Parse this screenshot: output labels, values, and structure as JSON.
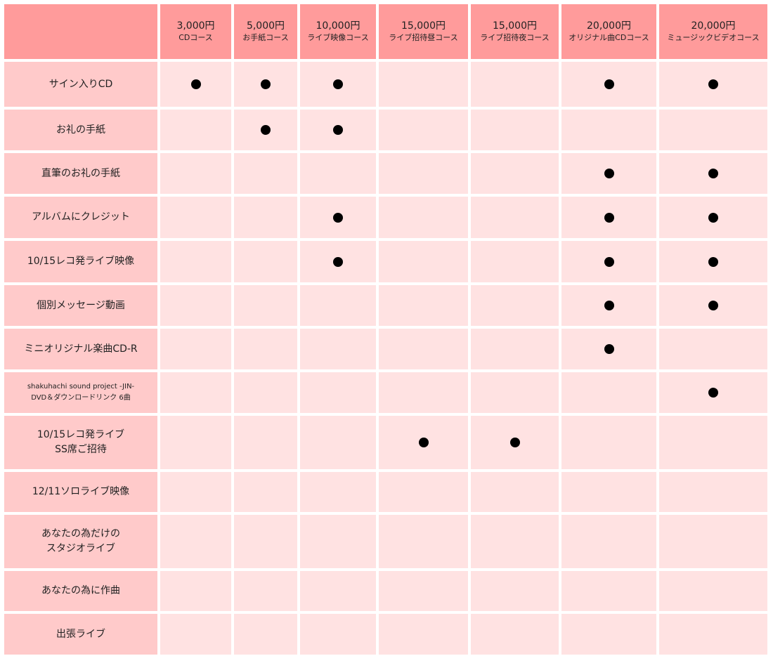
{
  "colors": {
    "header": "#ff9b9b",
    "label_column": "#ffcaca",
    "cell": "#ffe2e2",
    "mark": "#000000"
  },
  "mark_icon": "filled-circle",
  "columns": [
    {
      "price": "3,000円",
      "course": "CDコース"
    },
    {
      "price": "5,000円",
      "course": "お手紙コース"
    },
    {
      "price": "10,000円",
      "course": "ライブ映像コース"
    },
    {
      "price": "15,000円",
      "course": "ライブ招待昼コース"
    },
    {
      "price": "15,000円",
      "course": "ライブ招待夜コース"
    },
    {
      "price": "20,000円",
      "course": "オリジナル曲CDコース"
    },
    {
      "price": "20,000円",
      "course": "ミュージックビデオコース"
    }
  ],
  "rows": [
    {
      "label": "サイン入りCD",
      "included": [
        true,
        true,
        true,
        false,
        false,
        true,
        true
      ]
    },
    {
      "label": "お礼の手紙",
      "included": [
        false,
        true,
        true,
        false,
        false,
        false,
        false
      ]
    },
    {
      "label": "直筆のお礼の手紙",
      "included": [
        false,
        false,
        false,
        false,
        false,
        true,
        true
      ]
    },
    {
      "label": "アルバムにクレジット",
      "included": [
        false,
        false,
        true,
        false,
        false,
        true,
        true
      ]
    },
    {
      "label": "10/15レコ発ライブ映像",
      "included": [
        false,
        false,
        true,
        false,
        false,
        true,
        true
      ]
    },
    {
      "label": "個別メッセージ動画",
      "included": [
        false,
        false,
        false,
        false,
        false,
        true,
        true
      ]
    },
    {
      "label": "ミニオリジナル楽曲CD-R",
      "included": [
        false,
        false,
        false,
        false,
        false,
        true,
        false
      ]
    },
    {
      "label": "shakuhachi sound project -JIN-\nDVD＆ダウンロードリンク 6曲",
      "small": true,
      "included": [
        false,
        false,
        false,
        false,
        false,
        false,
        true
      ]
    },
    {
      "label": "10/15レコ発ライブ\nSS席ご招待",
      "included": [
        false,
        false,
        false,
        true,
        true,
        false,
        false
      ]
    },
    {
      "label": "12/11ソロライブ映像",
      "included": [
        false,
        false,
        false,
        false,
        false,
        false,
        false
      ]
    },
    {
      "label": "あなたの為だけの\nスタジオライブ",
      "included": [
        false,
        false,
        false,
        false,
        false,
        false,
        false
      ]
    },
    {
      "label": "あなたの為に作曲",
      "included": [
        false,
        false,
        false,
        false,
        false,
        false,
        false
      ]
    },
    {
      "label": "出張ライブ",
      "included": [
        false,
        false,
        false,
        false,
        false,
        false,
        false
      ]
    }
  ]
}
